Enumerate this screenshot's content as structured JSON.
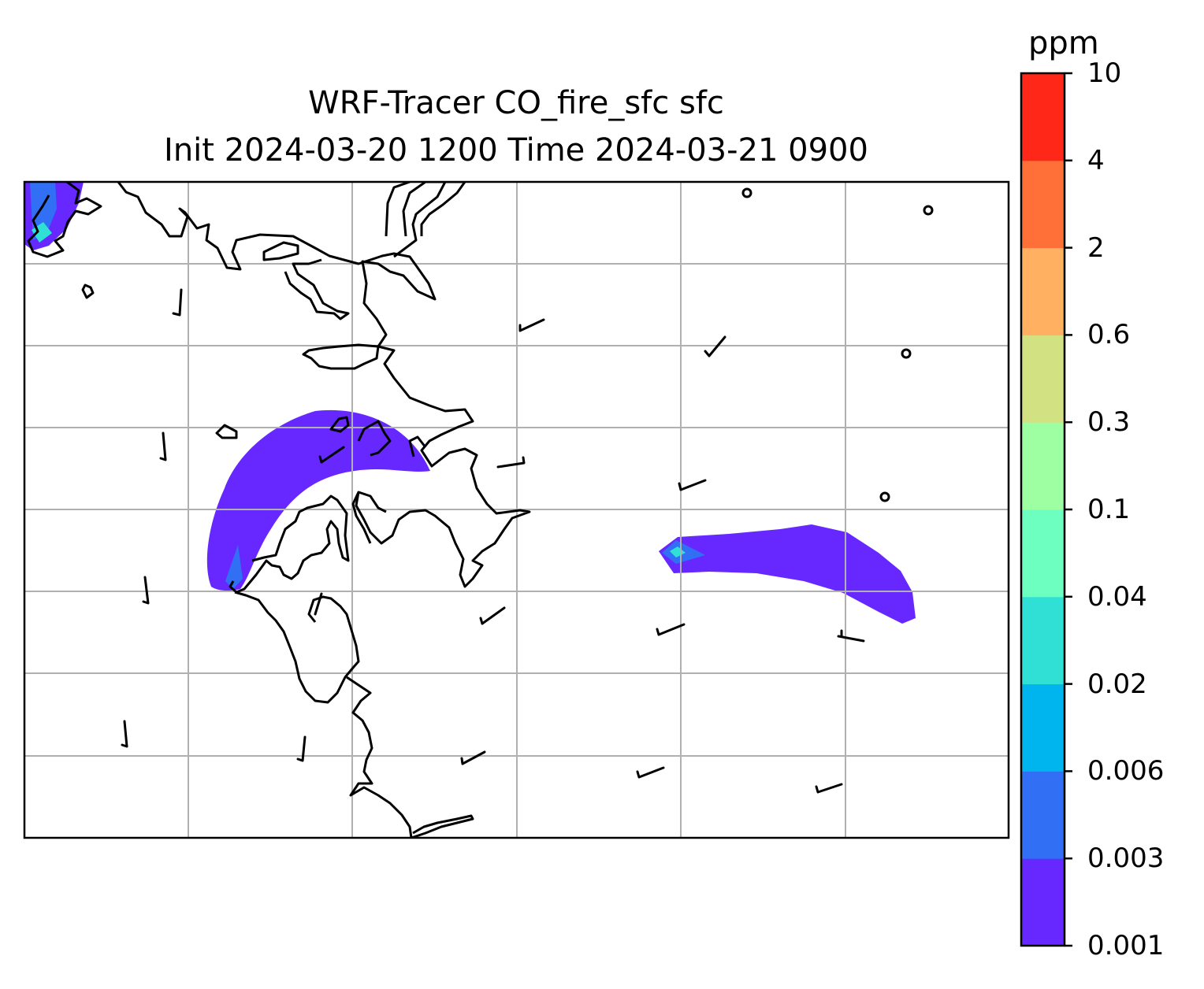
{
  "title": {
    "line1": "WRF-Tracer CO_fire_sfc sfc",
    "line2": "Init 2024-03-20 1200 Time 2024-03-21 0900"
  },
  "colorbar": {
    "units": "ppm",
    "levels": [
      "0.001",
      "0.003",
      "0.006",
      "0.02",
      "0.04",
      "0.1",
      "0.3",
      "0.6",
      "2",
      "4",
      "10"
    ],
    "colors": [
      "#6628ff",
      "#3170f5",
      "#00b5ed",
      "#30e0d5",
      "#6cffc0",
      "#9dffa1",
      "#d2e283",
      "#ffb060",
      "#ff7038",
      "#ff2818"
    ]
  },
  "map": {
    "gridlines": true,
    "coastline_color": "#000000",
    "grid_color": "#b0b0b0",
    "plumes": [
      {
        "name": "northwest-corner-plume",
        "peak_level": "0.006"
      },
      {
        "name": "central-arc-plume",
        "peak_level": "0.003"
      },
      {
        "name": "eastern-plume",
        "peak_level": "0.02"
      }
    ],
    "wind_barbs": 22,
    "calm_circles": 4
  }
}
